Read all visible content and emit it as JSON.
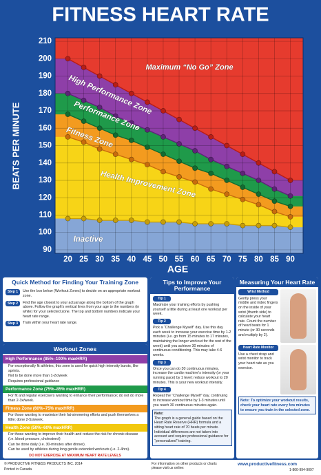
{
  "header": {
    "title": "FITNESS HEART RATE"
  },
  "chart_data": {
    "type": "line",
    "y_label": "BEATS PER MINUTE",
    "x_label": "AGE",
    "x": [
      20,
      25,
      30,
      35,
      40,
      45,
      50,
      55,
      60,
      65,
      70,
      75,
      80,
      85,
      90
    ],
    "xlim": [
      16,
      94
    ],
    "ylim": [
      88,
      212
    ],
    "xticks": [
      20,
      25,
      30,
      35,
      40,
      45,
      50,
      55,
      60,
      65,
      70,
      75,
      80,
      85,
      90
    ],
    "yticks": [
      90,
      100,
      110,
      120,
      130,
      140,
      150,
      160,
      170,
      180,
      190,
      200,
      210
    ],
    "grid": true,
    "top_band_color": "#e63b2e",
    "series": [
      {
        "color": "#b81d16",
        "band_color": "#8e3fa8",
        "values": [
          200,
          195,
          190,
          185,
          180,
          175,
          170,
          165,
          160,
          155,
          150,
          145,
          140,
          135,
          130
        ]
      },
      {
        "color": "#5e2378",
        "band_color": "#1f9a4a",
        "values": [
          180,
          176,
          172,
          167,
          163,
          159,
          155,
          151,
          147,
          142,
          138,
          134,
          130,
          125,
          121
        ]
      },
      {
        "color": "#136b31",
        "band_color": "#f39b1f",
        "values": [
          168,
          164,
          160,
          156,
          153,
          149,
          145,
          141,
          137,
          134,
          130,
          126,
          122,
          118,
          115
        ]
      },
      {
        "color": "#c86c0c",
        "band_color": "#f7d417",
        "values": [
          155,
          152,
          148,
          145,
          142,
          139,
          135,
          132,
          129,
          125,
          122,
          119,
          116,
          112,
          109
        ]
      },
      {
        "color": "#c79d08",
        "band_color": "#86a6d6",
        "values": [
          108,
          108,
          107,
          107,
          107,
          106,
          106,
          106,
          105,
          105,
          105,
          104,
          104,
          104,
          103
        ]
      }
    ],
    "zone_labels": [
      "Maximum “No Go” Zone",
      "High Performance Zone",
      "Performance Zone",
      "Fitness Zone",
      "Health Improvement Zone",
      "Inactive"
    ]
  },
  "quick_method": {
    "title": "Quick Method for Finding Your Training Zone",
    "steps": [
      {
        "label": "Step 1",
        "text": "Use the box below (Workout Zones) to decide on an appropriate workout zone."
      },
      {
        "label": "Step 2",
        "text": "Find the age closest to your actual age along the bottom of the graph above. Follow the graph's vertical lines from your age to the numbers (in white) for your selected zone. The top and bottom numbers indicate your heart rate range."
      },
      {
        "label": "Step 3",
        "text": "Train within your heart rate range."
      }
    ]
  },
  "workout_zones": {
    "title": "Workout Zones",
    "zones": [
      {
        "name": "High Performance (85%–100% maxHRR)",
        "color": "#8e3fa8",
        "bullets": [
          "For exceptionally fit athletes, this zone is used for quick high intensity bursts, like sprints.",
          "Not to be done more than 1-2x/week",
          "Requires professional guidance"
        ]
      },
      {
        "name": "Performance Zone (75%–85% maxHRR)",
        "color": "#1f9a4a",
        "bullets": [
          "For fit and regular exercisers wanting to enhance their performance; do not do more than 2-3x/week."
        ]
      },
      {
        "name": "Fitness Zone (60%–75% maxHRR)",
        "color": "#f39b1f",
        "bullets": [
          "For those wanting to maximize their fat-simmering efforts and push themselves a little; done 2-5x/week."
        ]
      },
      {
        "name": "Health Zone (50%–60% maxHRR)",
        "color": "#f2c80f",
        "bullets": [
          "For those wanting to improve their health and reduce the risk for chronic disease (i.e. blood pressure, cholesterol)",
          "Can be done daily (i.e. 30-minutes after dinner).",
          "Can be used by athletes during long gentle extended workouts (i.e. 2-4hrs)."
        ]
      }
    ],
    "warning": "DO NOT EXERCISE AT MAXIMUM HEART RATE LEVELS"
  },
  "tips": {
    "title": "Tips to Improve Your Performance",
    "items": [
      {
        "label": "Tip 1",
        "text": "Maximize your training efforts by pushing yourself a little during at least one workout per week."
      },
      {
        "label": "Tip 2",
        "text": "Pick a “Challenge Myself” day. Use this day each week to increase your exercise time by 1-2 minutes (i.e. go from 15 minutes to 17 minutes, maintaining the longer workout for the rest of the week) until you achieve 30 minutes of continuous conditioning. This may take 4-6 weeks."
      },
      {
        "label": "Tip 3",
        "text": "Once you can do 30 continuous minutes, increase the cardio machine's intensity (or your running pace) by 1 level; reduce workout to 20 minutes. This is your new workout intensity."
      },
      {
        "label": "Tip 4",
        "text": "Repeat the “Challenge Myself” day, continuing to increase workout time by 1-3 minutes until you reach 30 continuous minutes again."
      }
    ],
    "note": [
      "Note:",
      "The graph is a general guide based on the Heart Rate Reserve (HRR) formula and a sitting heart rate of 70 beats per minute.",
      "Individual differences are not taken into account and require professional guidance for “personalized” training."
    ]
  },
  "measuring": {
    "title": "Measuring Your Heart Rate",
    "methods": [
      {
        "label": "Wrist Method",
        "text": "Gently press your middle and index fingers on the inside of your wrist (thumb side) to calculate your heart rate. Count the number of heart beats for 1 minute (or 30 seconds and multiply by 2)."
      },
      {
        "label": "Heart Rate Monitor",
        "text": "Use a chest strap and wrist monitor to track your heart rate as you exercise."
      }
    ],
    "note": "Note: To optimize your workout results, check your heart rate every few minutes to ensure you train in the selected zone."
  },
  "footer": {
    "copyright": "© PRODUCTIVE FITNESS PRODUCTS INC. 2014",
    "printed": "Printed in Canada",
    "more_info": "For information on other products or charts please visit us online:",
    "website": "www.productivefitness.com",
    "phone": "1-800-994-9097"
  }
}
